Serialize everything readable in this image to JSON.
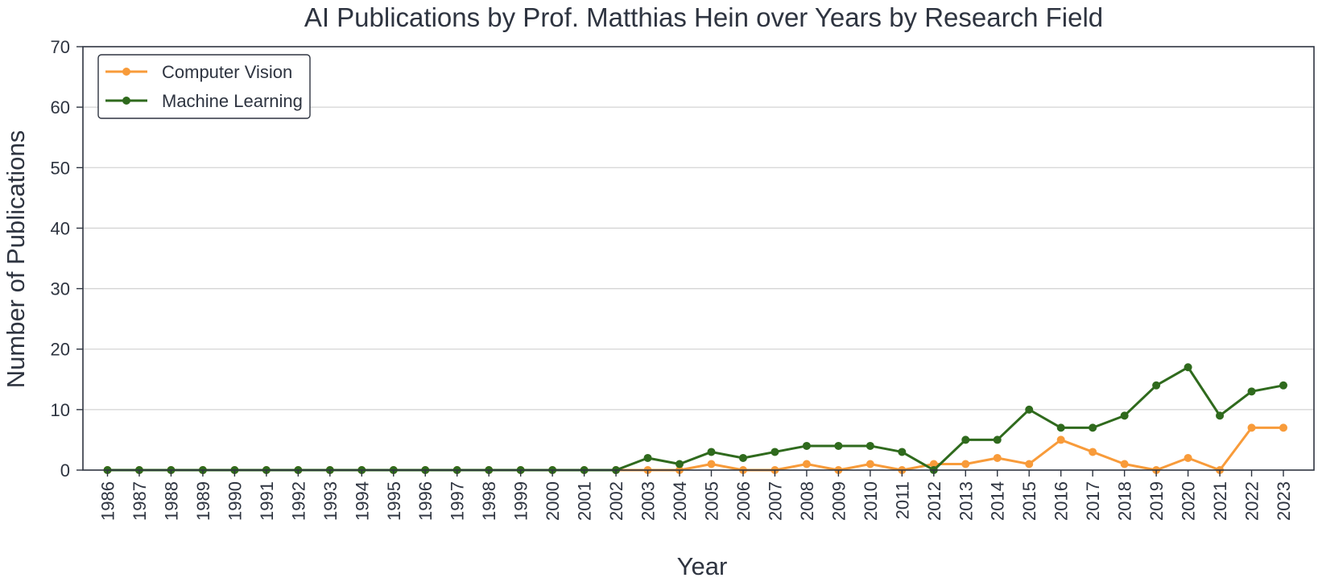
{
  "chart_data": {
    "type": "line",
    "title": "AI Publications by Prof. Matthias Hein over Years by Research Field",
    "xlabel": "Year",
    "ylabel": "Number of Publications",
    "x": [
      "1986",
      "1987",
      "1988",
      "1989",
      "1990",
      "1991",
      "1992",
      "1993",
      "1994",
      "1995",
      "1996",
      "1997",
      "1998",
      "1999",
      "2000",
      "2001",
      "2002",
      "2003",
      "2004",
      "2005",
      "2006",
      "2007",
      "2008",
      "2009",
      "2010",
      "2011",
      "2012",
      "2013",
      "2014",
      "2015",
      "2016",
      "2017",
      "2018",
      "2019",
      "2020",
      "2021",
      "2022",
      "2023"
    ],
    "ylim": [
      0,
      70
    ],
    "yticks": [
      "0",
      "10",
      "20",
      "30",
      "40",
      "50",
      "60",
      "70"
    ],
    "grid": "horizontal",
    "legend_position": "top-left",
    "series": [
      {
        "name": "Computer Vision",
        "color": "#f89b3a",
        "values": [
          0,
          0,
          0,
          0,
          0,
          0,
          0,
          0,
          0,
          0,
          0,
          0,
          0,
          0,
          0,
          0,
          0,
          0,
          0,
          1,
          0,
          0,
          1,
          0,
          1,
          0,
          1,
          1,
          2,
          1,
          5,
          3,
          1,
          0,
          2,
          0,
          7,
          7
        ]
      },
      {
        "name": "Machine Learning",
        "color": "#2f6a1d",
        "values": [
          0,
          0,
          0,
          0,
          0,
          0,
          0,
          0,
          0,
          0,
          0,
          0,
          0,
          0,
          0,
          0,
          0,
          2,
          1,
          3,
          2,
          3,
          4,
          4,
          4,
          3,
          0,
          5,
          5,
          10,
          7,
          7,
          9,
          14,
          17,
          9,
          13,
          14
        ]
      }
    ]
  }
}
